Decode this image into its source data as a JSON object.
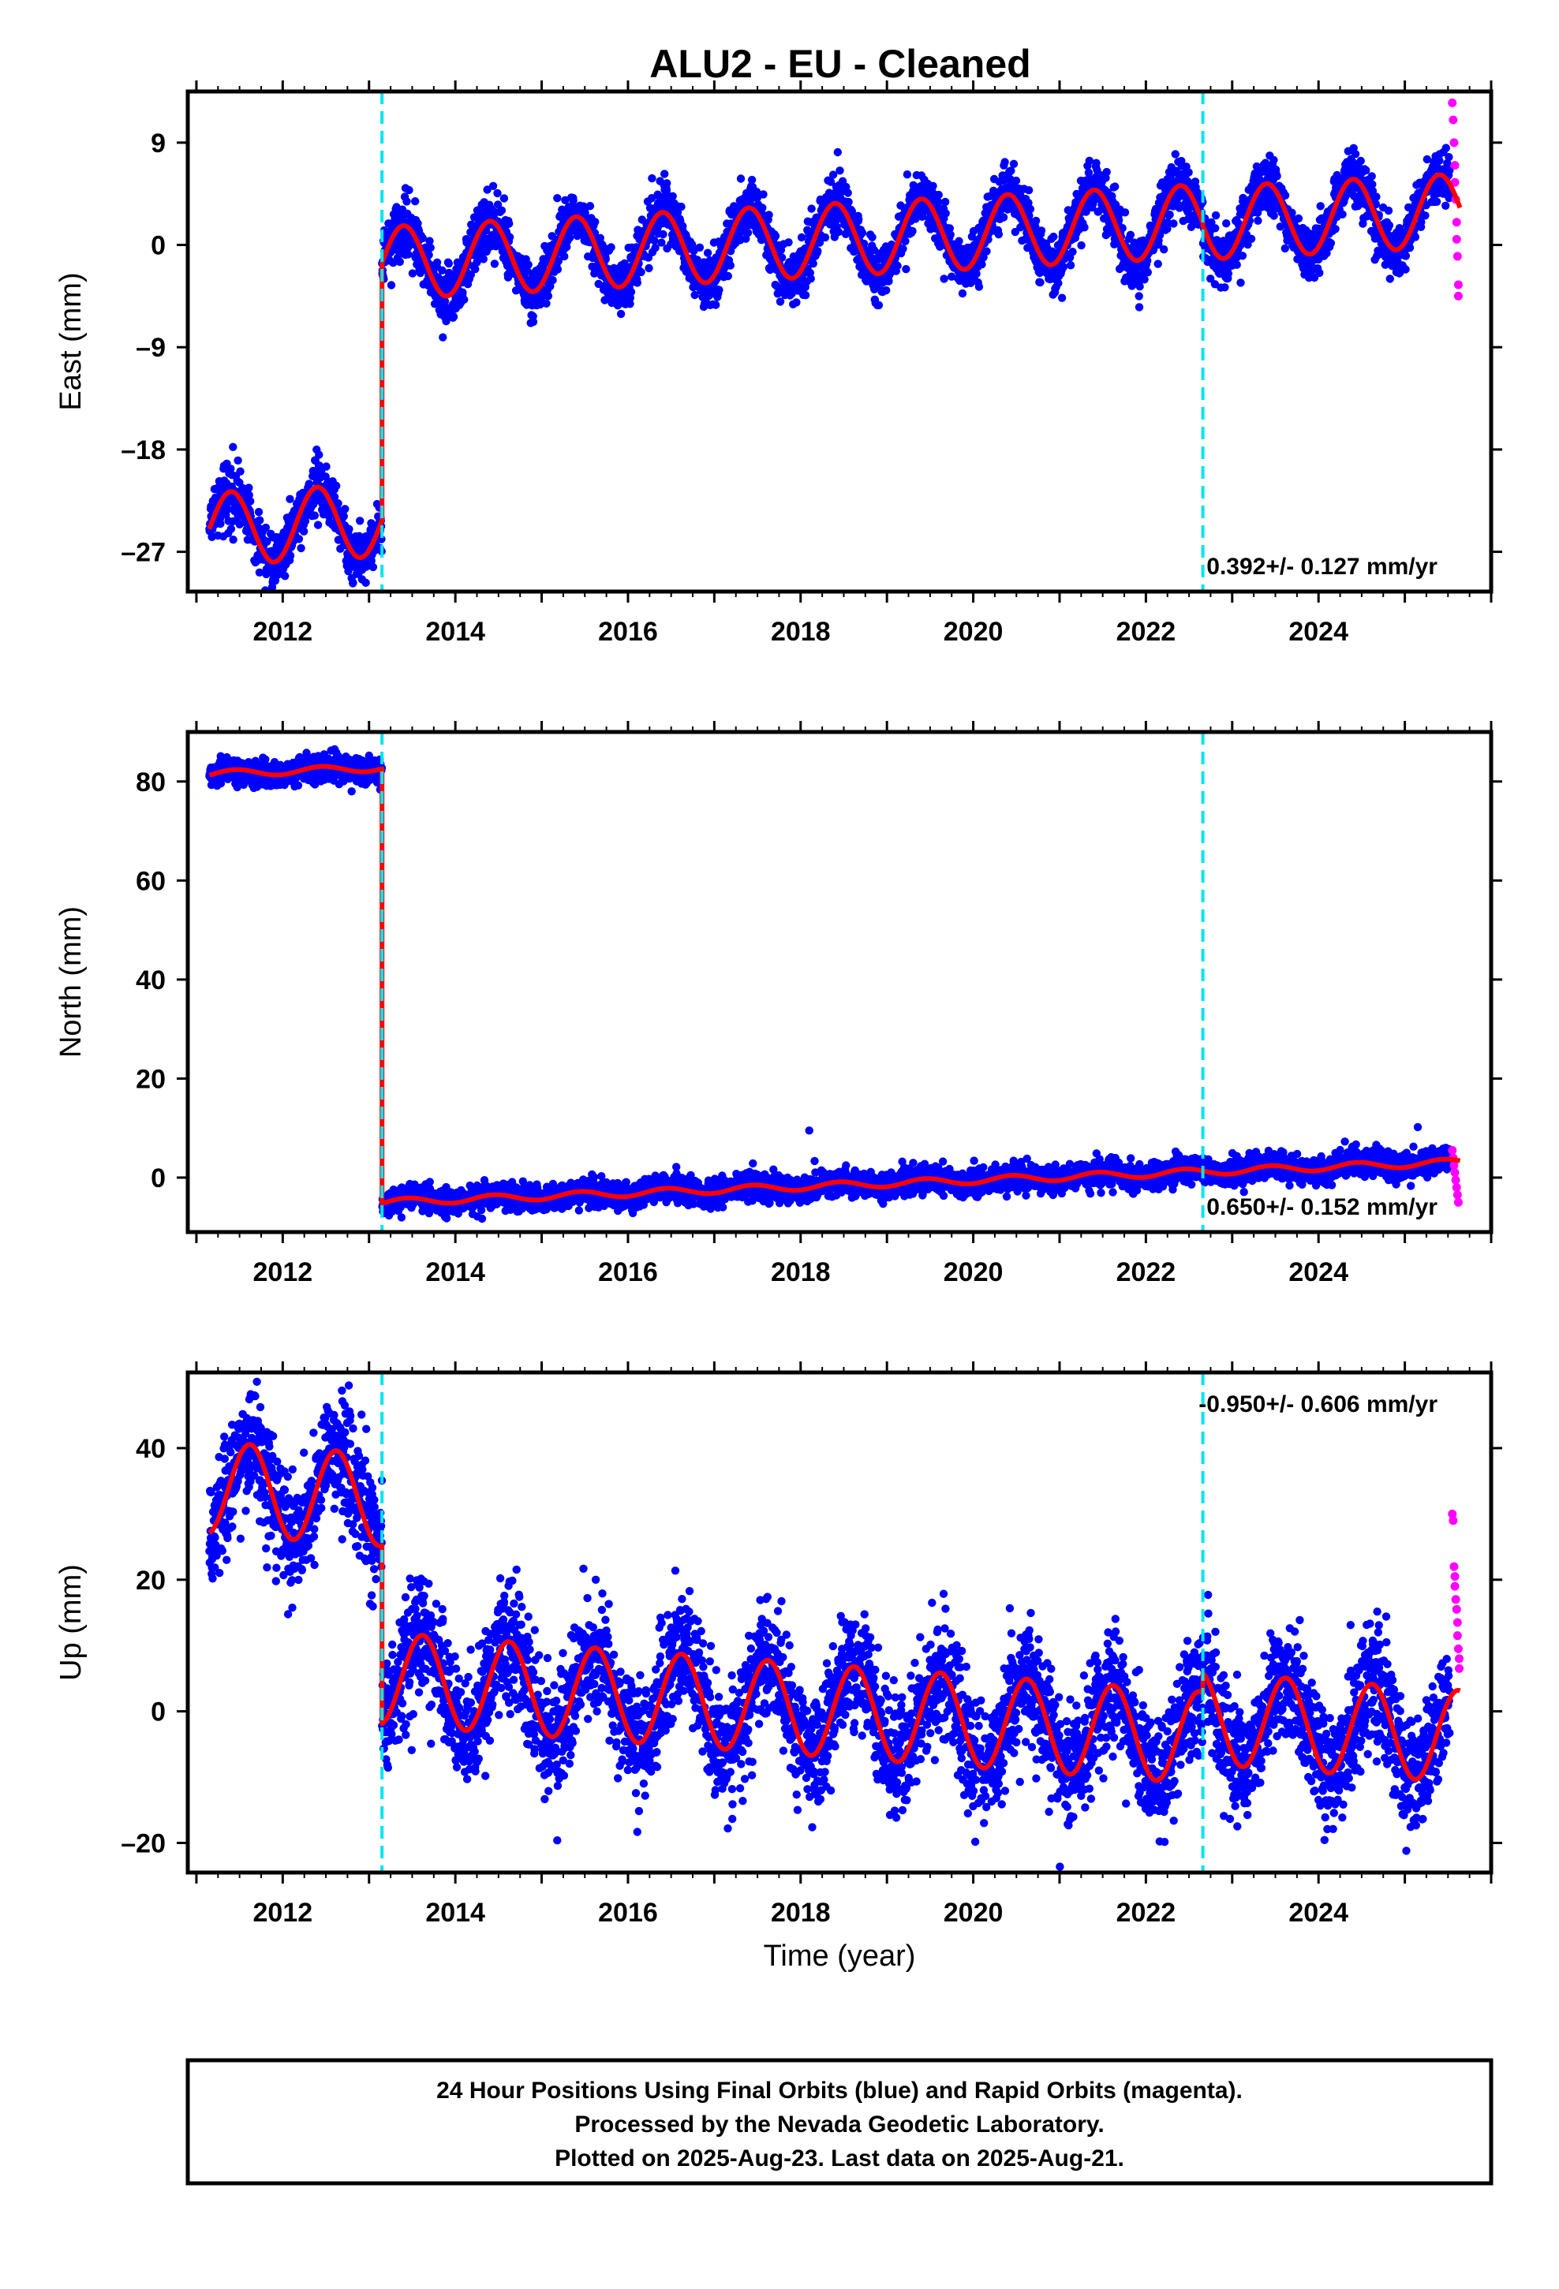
{
  "title": "ALU2  - EU - Cleaned",
  "colors": {
    "final_orbits": "#0000ff",
    "rapid_orbits": "#ff00ff",
    "model": "#ff0000",
    "equipment_change": "#00e5ee",
    "frame": "#000000"
  },
  "footer": {
    "line1": "24 Hour Positions Using Final Orbits (blue) and Rapid Orbits (magenta).",
    "line2": "Processed by the Nevada Geodetic Laboratory.",
    "line3": "Plotted on 2025-Aug-23. Last data on 2025-Aug-21."
  },
  "chart_data": [
    {
      "type": "scatter",
      "component": "east",
      "ylabel": "East (mm)",
      "xlabel": "",
      "xlim": [
        2010.9,
        2026.0
      ],
      "ylim": [
        -30.5,
        13.5
      ],
      "xticks": [
        2012,
        2014,
        2016,
        2018,
        2020,
        2022,
        2024
      ],
      "yticks": [
        -27,
        -18,
        -9,
        0,
        9
      ],
      "ytick_labels": [
        "–27",
        "–18",
        "–9",
        "0",
        "9"
      ],
      "rate_text": "0.392+/- 0.127 mm/yr",
      "rate_position": "bottom-right",
      "equipment_changes": [
        2013.15,
        2022.66
      ],
      "series_start": 2011.15,
      "last_final": 2025.52,
      "last_data": 2025.64,
      "model": {
        "segments": [
          {
            "start": 2011.15,
            "end": 2013.15,
            "offset": -25.0,
            "rate": 0.392,
            "amplitude": 3.2,
            "peak": 0.4
          },
          {
            "start": 2013.15,
            "end": 2022.66,
            "offset": -1.6,
            "rate": 0.392,
            "amplitude": 3.2,
            "peak": 0.4
          },
          {
            "start": 2022.66,
            "end": 2025.64,
            "offset": 1.9,
            "rate": 0.392,
            "amplitude": 3.2,
            "peak": 0.4
          }
        ]
      },
      "scatter_sd": 1.2,
      "rapid_points": [
        [
          2025.55,
          12.5
        ],
        [
          2025.56,
          11.0
        ],
        [
          2025.57,
          9.0
        ],
        [
          2025.58,
          7.0
        ],
        [
          2025.58,
          5.5
        ],
        [
          2025.59,
          4.0
        ],
        [
          2025.6,
          2.0
        ],
        [
          2025.6,
          0.5
        ],
        [
          2025.61,
          -1.0
        ],
        [
          2025.62,
          -3.5
        ],
        [
          2025.62,
          -4.5
        ]
      ]
    },
    {
      "type": "scatter",
      "component": "north",
      "ylabel": "North (mm)",
      "xlabel": "",
      "xlim": [
        2010.9,
        2026.0
      ],
      "ylim": [
        -11,
        90
      ],
      "xticks": [
        2012,
        2014,
        2016,
        2018,
        2020,
        2022,
        2024
      ],
      "yticks": [
        0,
        20,
        40,
        60,
        80
      ],
      "ytick_labels": [
        "0",
        "20",
        "40",
        "60",
        "80"
      ],
      "rate_text": "0.650+/- 0.152 mm/yr",
      "rate_position": "bottom-right",
      "equipment_changes": [
        2013.15,
        2022.66
      ],
      "series_start": 2011.15,
      "last_final": 2025.52,
      "last_data": 2025.64,
      "model": {
        "segments": [
          {
            "start": 2011.15,
            "end": 2013.15,
            "offset": 81.5,
            "rate": 0.65,
            "amplitude": 0.7,
            "peak": 0.45
          },
          {
            "start": 2013.15,
            "end": 2022.66,
            "offset": -5.0,
            "rate": 0.65,
            "amplitude": 0.7,
            "peak": 0.45
          },
          {
            "start": 2022.66,
            "end": 2025.64,
            "offset": 1.2,
            "rate": 0.65,
            "amplitude": 0.7,
            "peak": 0.45
          }
        ]
      },
      "scatter_sd": 1.3,
      "outliers": [
        [
          2018.1,
          9.5
        ],
        [
          2025.15,
          10.2
        ]
      ],
      "rapid_points": [
        [
          2025.55,
          5.5
        ],
        [
          2025.56,
          4.0
        ],
        [
          2025.57,
          2.5
        ],
        [
          2025.58,
          1.0
        ],
        [
          2025.59,
          -0.5
        ],
        [
          2025.6,
          -2.0
        ],
        [
          2025.61,
          -3.5
        ],
        [
          2025.62,
          -5.0
        ]
      ]
    },
    {
      "type": "scatter",
      "component": "up",
      "ylabel": "Up (mm)",
      "xlabel": "Time (year)",
      "xlim": [
        2010.9,
        2026.0
      ],
      "ylim": [
        -24.5,
        51.5
      ],
      "xticks": [
        2012,
        2014,
        2016,
        2018,
        2020,
        2022,
        2024
      ],
      "yticks": [
        -20,
        0,
        20,
        40
      ],
      "ytick_labels": [
        "–20",
        "0",
        "20",
        "40"
      ],
      "rate_text": "-0.950+/- 0.606 mm/yr",
      "rate_position": "top-right",
      "equipment_changes": [
        2013.15,
        2022.66
      ],
      "series_start": 2011.15,
      "last_final": 2025.52,
      "last_data": 2025.64,
      "model": {
        "segments": [
          {
            "start": 2011.15,
            "end": 2013.15,
            "offset": 34.0,
            "rate": -0.95,
            "amplitude": 7.0,
            "peak": 0.62
          },
          {
            "start": 2013.15,
            "end": 2022.66,
            "offset": 5.0,
            "rate": -0.95,
            "amplitude": 7.0,
            "peak": 0.62
          },
          {
            "start": 2022.66,
            "end": 2025.64,
            "offset": -1.0,
            "rate": -0.95,
            "amplitude": 7.0,
            "peak": 0.62
          }
        ]
      },
      "scatter_sd": 4.5,
      "rapid_points": [
        [
          2025.55,
          30.0
        ],
        [
          2025.56,
          29.0
        ],
        [
          2025.57,
          22.0
        ],
        [
          2025.58,
          20.5
        ],
        [
          2025.58,
          19.0
        ],
        [
          2025.59,
          17.0
        ],
        [
          2025.6,
          15.5
        ],
        [
          2025.61,
          13.5
        ],
        [
          2025.61,
          11.5
        ],
        [
          2025.62,
          9.5
        ],
        [
          2025.63,
          8.0
        ],
        [
          2025.63,
          6.5
        ]
      ]
    }
  ]
}
